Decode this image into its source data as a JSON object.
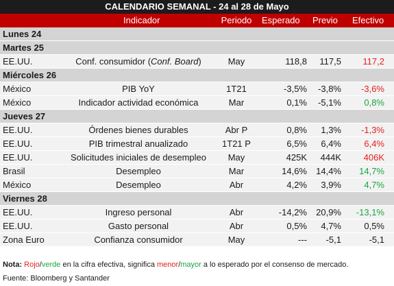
{
  "title": "CALENDARIO SEMANAL - 24 al 28 de Mayo",
  "columns": {
    "indicator": "Indicador",
    "period": "Periodo",
    "expected": "Esperado",
    "previous": "Previo",
    "actual": "Efectivo"
  },
  "days": [
    {
      "label": "Lunes 24",
      "rows": []
    },
    {
      "label": "Martes 25",
      "rows": [
        {
          "country": "EE.UU.",
          "indicator_prefix": "Conf. consumidor (",
          "indicator_italic": "Conf. Board",
          "indicator_suffix": ")",
          "period": "May",
          "expected": "118,8",
          "previous": "117,5",
          "actual": "117,2",
          "actual_color": "red"
        }
      ]
    },
    {
      "label": "Miércoles 26",
      "rows": [
        {
          "country": "México",
          "indicator": "PIB YoY",
          "period": "1T21",
          "expected": "-3,5%",
          "previous": "-3,8%",
          "actual": "-3,6%",
          "actual_color": "red"
        },
        {
          "country": "México",
          "indicator": "Indicador actividad económica",
          "period": "Mar",
          "expected": "0,1%",
          "previous": "-5,1%",
          "actual": "0,8%",
          "actual_color": "green"
        }
      ]
    },
    {
      "label": "Jueves 27",
      "rows": [
        {
          "country": "EE.UU.",
          "indicator": "Órdenes bienes durables",
          "period": "Abr P",
          "expected": "0,8%",
          "previous": "1,3%",
          "actual": "-1,3%",
          "actual_color": "red"
        },
        {
          "country": "EE.UU.",
          "indicator": "PIB trimestral anualizado",
          "period": "1T21 P",
          "expected": "6,5%",
          "previous": "6,4%",
          "actual": "6,4%",
          "actual_color": "red"
        },
        {
          "country": "EE.UU.",
          "indicator": "Solicitudes iniciales de desempleo",
          "period": "May",
          "expected": "425K",
          "previous": "444K",
          "actual": "406K",
          "actual_color": "red"
        },
        {
          "country": "Brasil",
          "indicator": "Desempleo",
          "period": "Mar",
          "expected": "14,6%",
          "previous": "14,4%",
          "actual": "14,7%",
          "actual_color": "green"
        },
        {
          "country": "México",
          "indicator": "Desempleo",
          "period": "Abr",
          "expected": "4,2%",
          "previous": "3,9%",
          "actual": "4,7%",
          "actual_color": "green"
        }
      ]
    },
    {
      "label": "Viernes 28",
      "rows": [
        {
          "country": "EE.UU.",
          "indicator": "Ingreso personal",
          "period": "Abr",
          "expected": "-14,2%",
          "previous": "20,9%",
          "actual": "-13,1%",
          "actual_color": "green"
        },
        {
          "country": "EE.UU.",
          "indicator": "Gasto personal",
          "period": "Abr",
          "expected": "0,5%",
          "previous": "4,7%",
          "actual": "0,5%",
          "actual_color": "default"
        },
        {
          "country": "Zona Euro",
          "indicator": "Confianza consumidor",
          "period": "May",
          "expected": "---",
          "previous": "-5,1",
          "actual": "-5,1",
          "actual_color": "default"
        }
      ]
    }
  ],
  "note": {
    "label": "Nota:",
    "red_word": "Rojo",
    "slash1": "/",
    "green_word": "verde",
    "text1": " en la cifra efectiva, significa ",
    "menor": "menor",
    "slash2": "/",
    "mayor": "mayor",
    "text2": " a lo esperado por el consenso de mercado."
  },
  "source": "Fuente: Bloomberg y Santander",
  "colors": {
    "title_bg": "#1c1c1c",
    "header_bg": "#c00000",
    "section_bg": "#d4d4d4",
    "row_bg": "#f2f2f2",
    "red": "#e41f1f",
    "green": "#19a640"
  }
}
